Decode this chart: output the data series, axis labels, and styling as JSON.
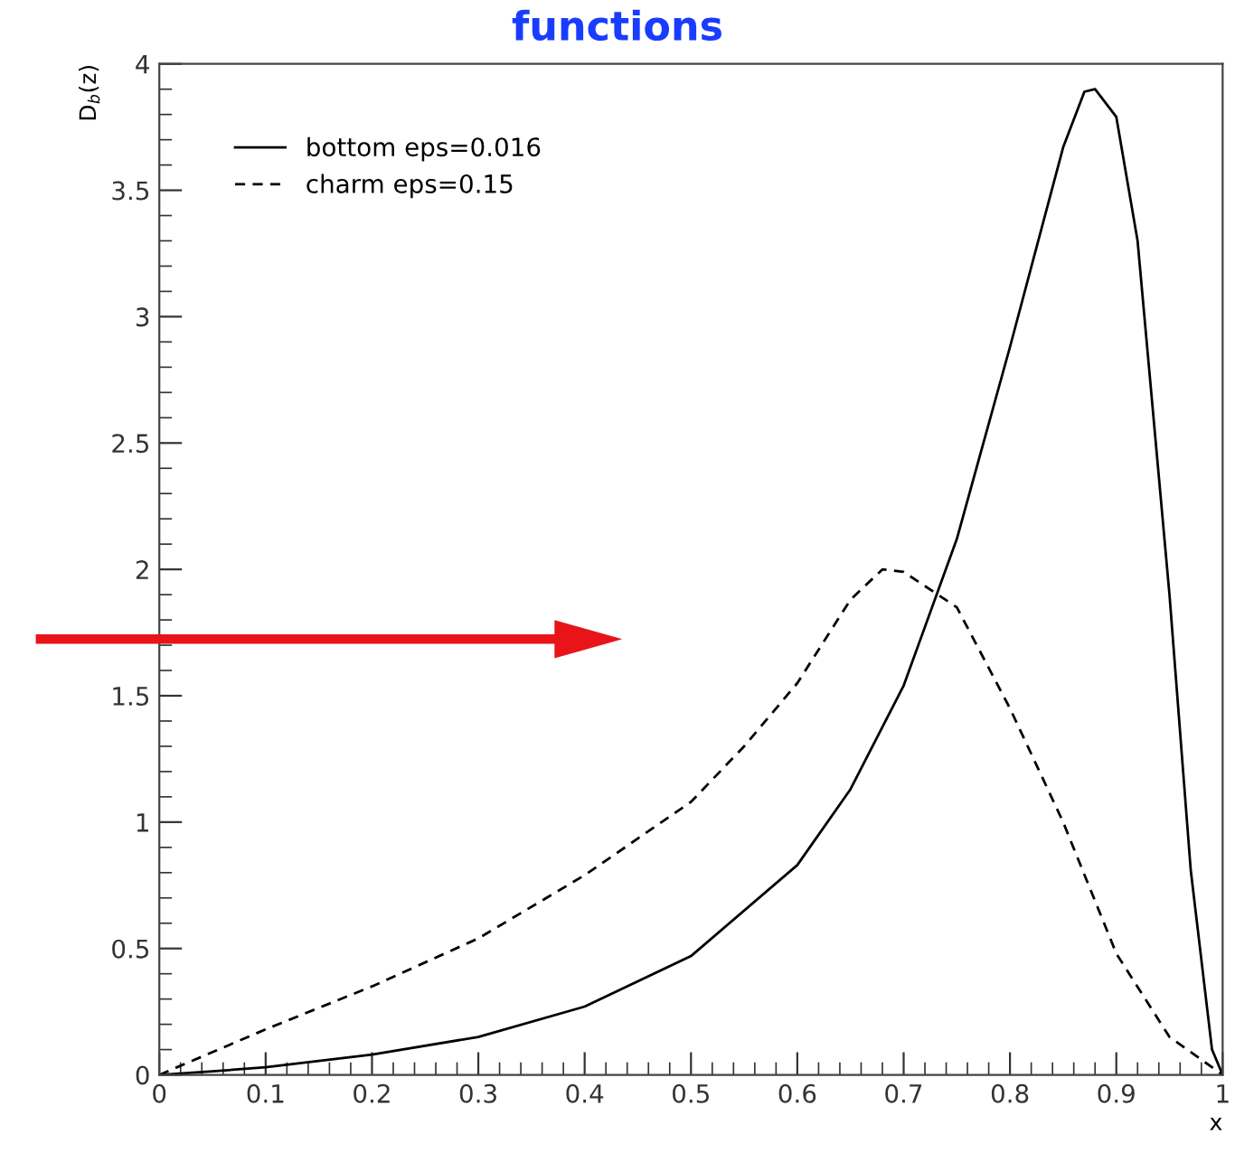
{
  "chart_data": {
    "type": "line",
    "title": "functions",
    "ylabel": "D$_{b}$(z)",
    "xlabel": "x",
    "xlim": [
      0,
      1
    ],
    "ylim": [
      0,
      4
    ],
    "xticks": [
      0,
      0.1,
      0.2,
      0.3,
      0.4,
      0.5,
      0.6,
      0.7,
      0.8,
      0.9,
      1
    ],
    "yticks": [
      0,
      0.5,
      1,
      1.5,
      2,
      2.5,
      3,
      3.5,
      4
    ],
    "grid": false,
    "legend": "top left",
    "marker": "none",
    "series": [
      {
        "name": "bottom eps=0.016",
        "color": "#000000",
        "line_style": "solid",
        "x": [
          0,
          0.05,
          0.1,
          0.2,
          0.3,
          0.4,
          0.5,
          0.6,
          0.65,
          0.7,
          0.75,
          0.8,
          0.85,
          0.87,
          0.88,
          0.9,
          0.92,
          0.95,
          0.97,
          0.99,
          1
        ],
        "values": [
          0,
          0.014,
          0.03,
          0.08,
          0.15,
          0.27,
          0.47,
          0.83,
          1.13,
          1.54,
          2.12,
          2.88,
          3.67,
          3.89,
          3.9,
          3.79,
          3.3,
          1.9,
          0.81,
          0.1,
          0
        ]
      },
      {
        "name": "charm eps=0.15",
        "color": "#000000",
        "line_style": "dashed",
        "x": [
          0,
          0.1,
          0.2,
          0.3,
          0.4,
          0.5,
          0.55,
          0.6,
          0.65,
          0.68,
          0.7,
          0.75,
          0.8,
          0.85,
          0.9,
          0.95,
          1
        ],
        "values": [
          0,
          0.18,
          0.35,
          0.54,
          0.79,
          1.08,
          1.3,
          1.55,
          1.88,
          2.0,
          1.99,
          1.85,
          1.45,
          1.0,
          0.48,
          0.15,
          0
        ]
      }
    ]
  }
}
